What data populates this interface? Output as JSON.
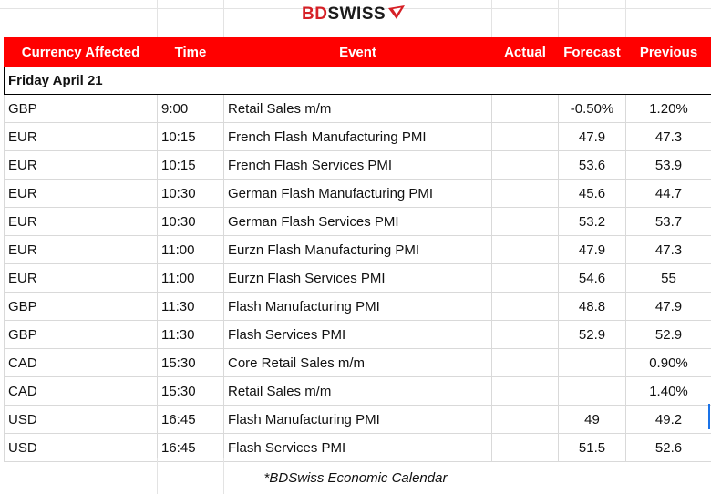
{
  "brand": {
    "part1": "BD",
    "part2": "SWISS"
  },
  "table": {
    "headers": [
      "Currency Affected",
      "Time",
      "Event",
      "Actual",
      "Forecast",
      "Previous"
    ],
    "date": "Friday April 21",
    "rows": [
      {
        "currency": "GBP",
        "time": "9:00",
        "event": "Retail Sales m/m",
        "actual": "",
        "forecast": "-0.50%",
        "previous": "1.20%"
      },
      {
        "currency": "EUR",
        "time": "10:15",
        "event": "French Flash Manufacturing PMI",
        "actual": "",
        "forecast": "47.9",
        "previous": "47.3"
      },
      {
        "currency": "EUR",
        "time": "10:15",
        "event": "French Flash Services PMI",
        "actual": "",
        "forecast": "53.6",
        "previous": "53.9"
      },
      {
        "currency": "EUR",
        "time": "10:30",
        "event": "German Flash Manufacturing PMI",
        "actual": "",
        "forecast": "45.6",
        "previous": "44.7"
      },
      {
        "currency": "EUR",
        "time": "10:30",
        "event": "German Flash Services PMI",
        "actual": "",
        "forecast": "53.2",
        "previous": "53.7"
      },
      {
        "currency": "EUR",
        "time": "11:00",
        "event": "Eurzn Flash Manufacturing PMI",
        "actual": "",
        "forecast": "47.9",
        "previous": "47.3"
      },
      {
        "currency": "EUR",
        "time": "11:00",
        "event": "Eurzn Flash Services PMI",
        "actual": "",
        "forecast": "54.6",
        "previous": "55"
      },
      {
        "currency": "GBP",
        "time": "11:30",
        "event": "Flash Manufacturing PMI",
        "actual": "",
        "forecast": "48.8",
        "previous": "47.9"
      },
      {
        "currency": "GBP",
        "time": "11:30",
        "event": "Flash Services PMI",
        "actual": "",
        "forecast": "52.9",
        "previous": "52.9"
      },
      {
        "currency": "CAD",
        "time": "15:30",
        "event": "Core Retail Sales m/m",
        "actual": "",
        "forecast": "",
        "previous": "0.90%"
      },
      {
        "currency": "CAD",
        "time": "15:30",
        "event": "Retail Sales m/m",
        "actual": "",
        "forecast": "",
        "previous": "1.40%"
      },
      {
        "currency": "USD",
        "time": "16:45",
        "event": "Flash Manufacturing PMI",
        "actual": "",
        "forecast": "49",
        "previous": "49.2"
      },
      {
        "currency": "USD",
        "time": "16:45",
        "event": "Flash Services PMI",
        "actual": "",
        "forecast": "51.5",
        "previous": "52.6"
      }
    ]
  },
  "footer": "*BDSwiss Economic Calendar",
  "colors": {
    "header_bg": "#ff0000",
    "brand_red": "#d62026"
  }
}
